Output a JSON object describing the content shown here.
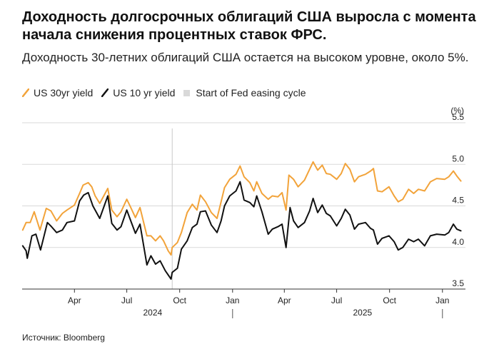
{
  "title": "Доходность долгосрочных облигаций США выросла с момента начала снижения процентных ставок ФРС.",
  "subtitle": "Доходность 30-летних облигаций США остается на высоком уровне, около 5%.",
  "source": "Источник: Bloomberg",
  "legend": {
    "s30": "US 30yr yield",
    "s10": "US 10 yr yield",
    "event": "Start of Fed easing cycle"
  },
  "colors": {
    "s30": "#f2a33a",
    "s10": "#111111",
    "event_line": "#c9c9c9",
    "grid": "#d9d9d9",
    "axis": "#333333"
  },
  "chart_data": {
    "type": "line",
    "y_unit": "(%)",
    "ylim": [
      3.5,
      5.5
    ],
    "y_ticks": [
      "3.5",
      "4.0",
      "4.5",
      "5.0",
      "5.5"
    ],
    "grid": true,
    "x_ticks": [
      {
        "date": "2024-04-01",
        "label": "Apr"
      },
      {
        "date": "2024-07-01",
        "label": "Jul"
      },
      {
        "date": "2024-10-01",
        "label": "Oct"
      },
      {
        "date": "2025-01-01",
        "label": "Jan"
      },
      {
        "date": "2025-04-01",
        "label": "Apr"
      },
      {
        "date": "2025-07-01",
        "label": "Jul"
      },
      {
        "date": "2025-10-01",
        "label": "Oct"
      },
      {
        "date": "2026-01-01",
        "label": "Jan"
      }
    ],
    "year_labels": [
      {
        "date": "2024-08-15",
        "label": "2024"
      },
      {
        "date": "2025-08-15",
        "label": "2025"
      }
    ],
    "year_separators": [
      "2025-01-01",
      "2026-01-01"
    ],
    "xlim": [
      "2024-01-01",
      "2026-02-10"
    ],
    "event": {
      "date": "2024-09-18",
      "label": "Start of Fed easing cycle"
    },
    "series": [
      {
        "name": "US 30yr yield",
        "key": "s30",
        "points": [
          [
            "2024-01-02",
            4.21
          ],
          [
            "2024-01-08",
            4.3
          ],
          [
            "2024-01-15",
            4.3
          ],
          [
            "2024-01-22",
            4.43
          ],
          [
            "2024-02-01",
            4.21
          ],
          [
            "2024-02-12",
            4.47
          ],
          [
            "2024-02-20",
            4.44
          ],
          [
            "2024-03-01",
            4.32
          ],
          [
            "2024-03-11",
            4.41
          ],
          [
            "2024-03-19",
            4.45
          ],
          [
            "2024-04-01",
            4.51
          ],
          [
            "2024-04-10",
            4.65
          ],
          [
            "2024-04-16",
            4.75
          ],
          [
            "2024-04-25",
            4.78
          ],
          [
            "2024-05-01",
            4.73
          ],
          [
            "2024-05-07",
            4.62
          ],
          [
            "2024-05-15",
            4.53
          ],
          [
            "2024-05-29",
            4.71
          ],
          [
            "2024-06-05",
            4.45
          ],
          [
            "2024-06-14",
            4.37
          ],
          [
            "2024-06-21",
            4.43
          ],
          [
            "2024-07-01",
            4.58
          ],
          [
            "2024-07-08",
            4.48
          ],
          [
            "2024-07-16",
            4.36
          ],
          [
            "2024-07-24",
            4.48
          ],
          [
            "2024-08-05",
            4.14
          ],
          [
            "2024-08-12",
            4.14
          ],
          [
            "2024-08-20",
            4.08
          ],
          [
            "2024-08-28",
            4.14
          ],
          [
            "2024-09-03",
            4.08
          ],
          [
            "2024-09-11",
            3.96
          ],
          [
            "2024-09-16",
            3.91
          ],
          [
            "2024-09-18",
            4.0
          ],
          [
            "2024-09-27",
            4.06
          ],
          [
            "2024-10-04",
            4.18
          ],
          [
            "2024-10-14",
            4.42
          ],
          [
            "2024-10-23",
            4.52
          ],
          [
            "2024-10-31",
            4.45
          ],
          [
            "2024-11-06",
            4.63
          ],
          [
            "2024-11-15",
            4.55
          ],
          [
            "2024-11-25",
            4.42
          ],
          [
            "2024-12-05",
            4.35
          ],
          [
            "2024-12-12",
            4.55
          ],
          [
            "2024-12-18",
            4.72
          ],
          [
            "2024-12-27",
            4.82
          ],
          [
            "2025-01-07",
            4.88
          ],
          [
            "2025-01-14",
            4.98
          ],
          [
            "2025-01-21",
            4.85
          ],
          [
            "2025-01-31",
            4.78
          ],
          [
            "2025-02-07",
            4.68
          ],
          [
            "2025-02-12",
            4.79
          ],
          [
            "2025-02-21",
            4.65
          ],
          [
            "2025-03-04",
            4.58
          ],
          [
            "2025-03-11",
            4.62
          ],
          [
            "2025-03-21",
            4.61
          ],
          [
            "2025-03-28",
            4.66
          ],
          [
            "2025-04-04",
            4.45
          ],
          [
            "2025-04-09",
            4.87
          ],
          [
            "2025-04-17",
            4.82
          ],
          [
            "2025-04-25",
            4.73
          ],
          [
            "2025-05-06",
            4.81
          ],
          [
            "2025-05-15",
            4.94
          ],
          [
            "2025-05-21",
            5.03
          ],
          [
            "2025-05-29",
            4.93
          ],
          [
            "2025-06-06",
            4.99
          ],
          [
            "2025-06-13",
            4.89
          ],
          [
            "2025-06-20",
            4.88
          ],
          [
            "2025-07-01",
            4.82
          ],
          [
            "2025-07-09",
            4.89
          ],
          [
            "2025-07-16",
            5.01
          ],
          [
            "2025-07-24",
            4.94
          ],
          [
            "2025-08-01",
            4.79
          ],
          [
            "2025-08-08",
            4.85
          ],
          [
            "2025-08-20",
            4.88
          ],
          [
            "2025-08-29",
            4.92
          ],
          [
            "2025-09-03",
            4.95
          ],
          [
            "2025-09-10",
            4.68
          ],
          [
            "2025-09-18",
            4.67
          ],
          [
            "2025-09-30",
            4.73
          ],
          [
            "2025-10-09",
            4.62
          ],
          [
            "2025-10-16",
            4.55
          ],
          [
            "2025-10-24",
            4.58
          ],
          [
            "2025-11-03",
            4.7
          ],
          [
            "2025-11-12",
            4.65
          ],
          [
            "2025-11-20",
            4.7
          ],
          [
            "2025-12-01",
            4.68
          ],
          [
            "2025-12-11",
            4.79
          ],
          [
            "2025-12-22",
            4.83
          ],
          [
            "2026-01-05",
            4.82
          ],
          [
            "2026-01-12",
            4.85
          ],
          [
            "2026-01-20",
            4.92
          ],
          [
            "2026-01-26",
            4.86
          ],
          [
            "2026-02-02",
            4.8
          ]
        ]
      },
      {
        "name": "US 10 yr yield",
        "key": "s10",
        "points": [
          [
            "2024-01-02",
            4.02
          ],
          [
            "2024-01-08",
            3.96
          ],
          [
            "2024-01-10",
            3.87
          ],
          [
            "2024-01-18",
            4.14
          ],
          [
            "2024-01-25",
            4.16
          ],
          [
            "2024-02-02",
            3.97
          ],
          [
            "2024-02-14",
            4.3
          ],
          [
            "2024-02-21",
            4.25
          ],
          [
            "2024-03-01",
            4.18
          ],
          [
            "2024-03-11",
            4.21
          ],
          [
            "2024-03-19",
            4.3
          ],
          [
            "2024-04-01",
            4.32
          ],
          [
            "2024-04-10",
            4.56
          ],
          [
            "2024-04-17",
            4.63
          ],
          [
            "2024-04-25",
            4.66
          ],
          [
            "2024-05-03",
            4.5
          ],
          [
            "2024-05-15",
            4.35
          ],
          [
            "2024-05-29",
            4.62
          ],
          [
            "2024-06-05",
            4.29
          ],
          [
            "2024-06-14",
            4.21
          ],
          [
            "2024-06-21",
            4.25
          ],
          [
            "2024-07-01",
            4.45
          ],
          [
            "2024-07-08",
            4.32
          ],
          [
            "2024-07-16",
            4.17
          ],
          [
            "2024-07-24",
            4.28
          ],
          [
            "2024-08-05",
            3.79
          ],
          [
            "2024-08-12",
            3.9
          ],
          [
            "2024-08-20",
            3.8
          ],
          [
            "2024-08-28",
            3.84
          ],
          [
            "2024-09-06",
            3.72
          ],
          [
            "2024-09-16",
            3.62
          ],
          [
            "2024-09-18",
            3.7
          ],
          [
            "2024-09-27",
            3.75
          ],
          [
            "2024-10-04",
            3.98
          ],
          [
            "2024-10-14",
            4.08
          ],
          [
            "2024-10-23",
            4.24
          ],
          [
            "2024-10-31",
            4.28
          ],
          [
            "2024-11-06",
            4.43
          ],
          [
            "2024-11-15",
            4.44
          ],
          [
            "2024-11-25",
            4.27
          ],
          [
            "2024-12-05",
            4.18
          ],
          [
            "2024-12-12",
            4.32
          ],
          [
            "2024-12-18",
            4.5
          ],
          [
            "2024-12-27",
            4.62
          ],
          [
            "2025-01-07",
            4.68
          ],
          [
            "2025-01-14",
            4.79
          ],
          [
            "2025-01-21",
            4.57
          ],
          [
            "2025-01-31",
            4.54
          ],
          [
            "2025-02-07",
            4.49
          ],
          [
            "2025-02-12",
            4.62
          ],
          [
            "2025-02-21",
            4.43
          ],
          [
            "2025-03-04",
            4.16
          ],
          [
            "2025-03-11",
            4.22
          ],
          [
            "2025-03-21",
            4.25
          ],
          [
            "2025-03-28",
            4.28
          ],
          [
            "2025-04-04",
            4.0
          ],
          [
            "2025-04-11",
            4.48
          ],
          [
            "2025-04-17",
            4.32
          ],
          [
            "2025-04-25",
            4.24
          ],
          [
            "2025-05-06",
            4.3
          ],
          [
            "2025-05-15",
            4.44
          ],
          [
            "2025-05-21",
            4.59
          ],
          [
            "2025-05-29",
            4.42
          ],
          [
            "2025-06-06",
            4.51
          ],
          [
            "2025-06-13",
            4.41
          ],
          [
            "2025-06-20",
            4.38
          ],
          [
            "2025-07-01",
            4.26
          ],
          [
            "2025-07-09",
            4.35
          ],
          [
            "2025-07-16",
            4.46
          ],
          [
            "2025-07-24",
            4.39
          ],
          [
            "2025-08-01",
            4.22
          ],
          [
            "2025-08-08",
            4.28
          ],
          [
            "2025-08-20",
            4.3
          ],
          [
            "2025-08-29",
            4.23
          ],
          [
            "2025-09-03",
            4.21
          ],
          [
            "2025-09-10",
            4.04
          ],
          [
            "2025-09-18",
            4.11
          ],
          [
            "2025-09-30",
            4.14
          ],
          [
            "2025-10-09",
            4.07
          ],
          [
            "2025-10-16",
            3.97
          ],
          [
            "2025-10-24",
            4.0
          ],
          [
            "2025-11-03",
            4.1
          ],
          [
            "2025-11-12",
            4.07
          ],
          [
            "2025-11-20",
            4.1
          ],
          [
            "2025-12-01",
            4.02
          ],
          [
            "2025-12-11",
            4.14
          ],
          [
            "2025-12-22",
            4.16
          ],
          [
            "2026-01-05",
            4.15
          ],
          [
            "2026-01-12",
            4.18
          ],
          [
            "2026-01-20",
            4.28
          ],
          [
            "2026-01-26",
            4.22
          ],
          [
            "2026-02-02",
            4.2
          ]
        ]
      }
    ]
  }
}
